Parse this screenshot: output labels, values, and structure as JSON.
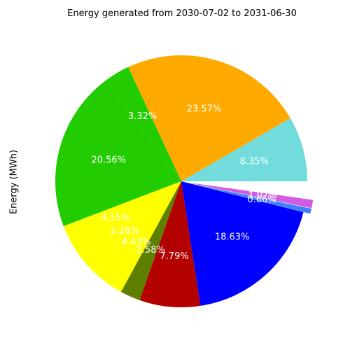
{
  "chart_data": {
    "type": "pie",
    "title": "Energy generated from 2030-07-02 to 2031-06-30",
    "xlabel": "",
    "ylabel": "Energy (MWh)",
    "start_angle_deg": 0,
    "direction": "counterclockwise",
    "slices": [
      {
        "label_text": "8.35%",
        "value": 8.35,
        "color": "#72dcdc",
        "explode": 0
      },
      {
        "label_text": "23.57%",
        "value": 23.57,
        "color": "#ffaa00",
        "explode": 0
      },
      {
        "label_text": "3.32%",
        "value": 3.32,
        "color": "#22cc00",
        "explode": 0
      },
      {
        "label_text": "20.56%",
        "value": 20.56,
        "color": "#22cc00",
        "explode": 0
      },
      {
        "label_text": "4.55%",
        "value": 4.55,
        "color": "#ffff00",
        "explode": 0
      },
      {
        "label_text": "2.28%",
        "value": 2.28,
        "color": "#ffff00",
        "explode": 0
      },
      {
        "label_text": "4.43%",
        "value": 4.43,
        "color": "#ffff00",
        "explode": 0
      },
      {
        "label_text": "2.58%",
        "value": 2.58,
        "color": "#5f7f00",
        "explode": 0
      },
      {
        "label_text": "7.79%",
        "value": 7.79,
        "color": "#b30000",
        "explode": 0
      },
      {
        "label_text": "18.63%",
        "value": 18.63,
        "color": "#0000ff",
        "explode": 0
      },
      {
        "label_text": "0.66%",
        "value": 0.66,
        "color": "#3f7fff",
        "explode": 1
      },
      {
        "label_text": "1.07%",
        "value": 1.07,
        "color": "#d05ce3",
        "explode": 1
      },
      {
        "label_text": "",
        "value": 2.21,
        "color": "#ffffff",
        "explode": 1
      }
    ]
  }
}
